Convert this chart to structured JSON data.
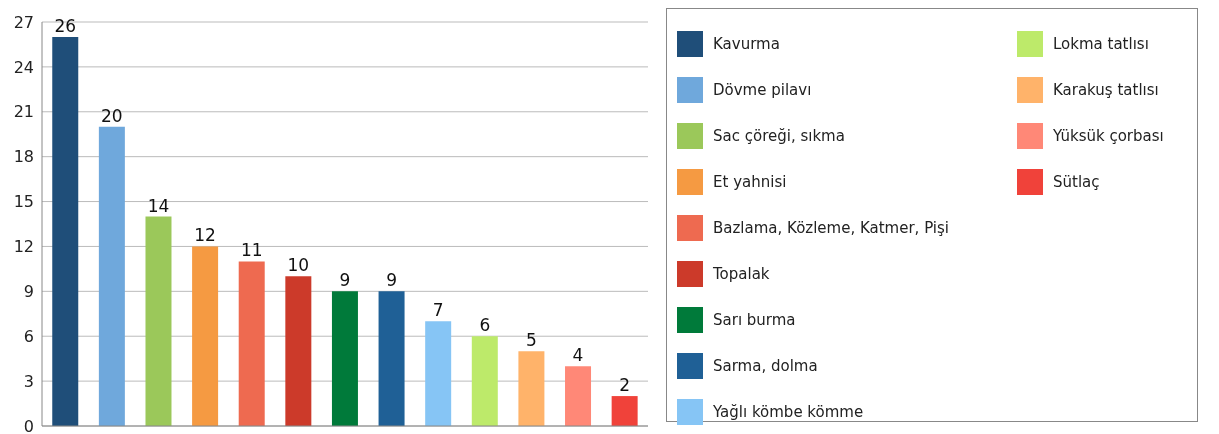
{
  "chart_data": {
    "type": "bar",
    "categories": [
      null,
      null,
      null,
      null,
      null,
      null,
      null,
      null,
      null,
      null,
      null,
      null,
      null
    ],
    "series": [
      {
        "name": "Kavurma",
        "color": "#1f4e79",
        "values": [
          26,
          null,
          null,
          null,
          null,
          null,
          null,
          null,
          null,
          null,
          null,
          null,
          null
        ]
      },
      {
        "name": "Dövme pilavı",
        "color": "#6fa8dc",
        "values": [
          null,
          20,
          null,
          null,
          null,
          null,
          null,
          null,
          null,
          null,
          null,
          null,
          null
        ]
      },
      {
        "name": "Sac çöreği, sıkma",
        "color": "#9bc85a",
        "values": [
          null,
          null,
          14,
          null,
          null,
          null,
          null,
          null,
          null,
          null,
          null,
          null,
          null
        ]
      },
      {
        "name": "Et yahnisi",
        "color": "#f59a42",
        "values": [
          null,
          null,
          null,
          12,
          null,
          null,
          null,
          null,
          null,
          null,
          null,
          null,
          null
        ]
      },
      {
        "name": "Bazlama, Közleme, Katmer, Pişi",
        "color": "#ee6a50",
        "values": [
          null,
          null,
          null,
          null,
          11,
          null,
          null,
          null,
          null,
          null,
          null,
          null,
          null
        ]
      },
      {
        "name": "Topalak",
        "color": "#cc3a2a",
        "values": [
          null,
          null,
          null,
          null,
          null,
          10,
          null,
          null,
          null,
          null,
          null,
          null,
          null
        ]
      },
      {
        "name": "Sarı burma",
        "color": "#007a3a",
        "values": [
          null,
          null,
          null,
          null,
          null,
          null,
          9,
          null,
          null,
          null,
          null,
          null,
          null
        ]
      },
      {
        "name": "Sarma, dolma",
        "color": "#1f6096",
        "values": [
          null,
          null,
          null,
          null,
          null,
          null,
          null,
          9,
          null,
          null,
          null,
          null,
          null
        ]
      },
      {
        "name": "Yağlı kömbe kömme",
        "color": "#86c5f5",
        "values": [
          null,
          null,
          null,
          null,
          null,
          null,
          null,
          null,
          7,
          null,
          null,
          null,
          null
        ]
      },
      {
        "name": "Lokma tatlısı",
        "color": "#bdea6a",
        "values": [
          null,
          null,
          null,
          null,
          null,
          null,
          null,
          null,
          null,
          6,
          null,
          null,
          null
        ]
      },
      {
        "name": "Karakuş tatlısı",
        "color": "#ffb36a",
        "values": [
          null,
          null,
          null,
          null,
          null,
          null,
          null,
          null,
          null,
          null,
          5,
          null,
          null
        ]
      },
      {
        "name": "Yüksük çorbası",
        "color": "#ff8877",
        "values": [
          null,
          null,
          null,
          null,
          null,
          null,
          null,
          null,
          null,
          null,
          null,
          4,
          null
        ]
      },
      {
        "name": "Sütlaç",
        "color": "#f0423a",
        "values": [
          null,
          null,
          null,
          null,
          null,
          null,
          null,
          null,
          null,
          null,
          null,
          null,
          2
        ]
      }
    ],
    "stacked": true,
    "ylim": [
      0,
      27
    ],
    "yticks": [
      0,
      3,
      6,
      9,
      12,
      15,
      18,
      21,
      24,
      27
    ],
    "grid": "y",
    "data_labels": true,
    "legend": "right",
    "tick_labels": "y"
  }
}
